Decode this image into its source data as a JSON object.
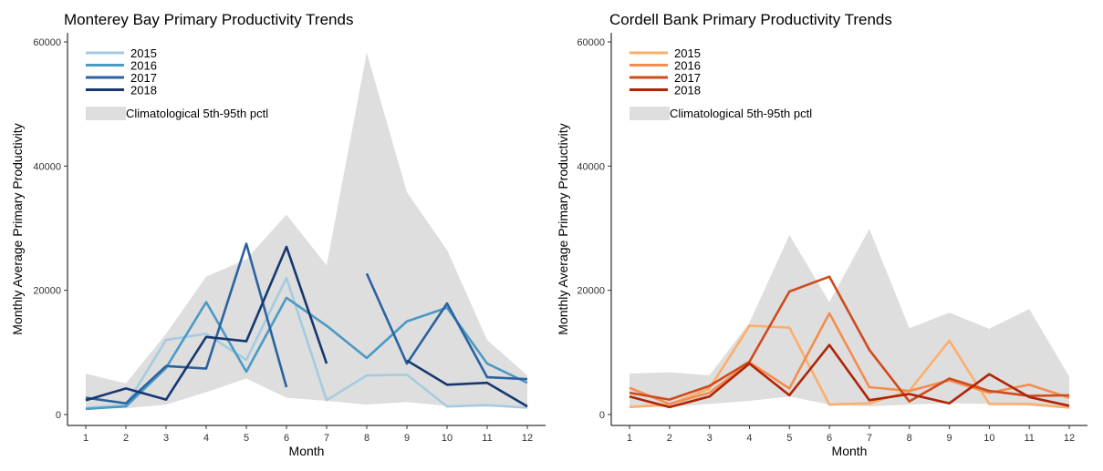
{
  "chart_data": [
    {
      "type": "line",
      "title": "Monterey Bay Primary Productivity Trends",
      "xlabel": "Month",
      "ylabel": "Monthly Average Primary Productivity",
      "xlim": [
        1,
        12
      ],
      "ylim": [
        0,
        60000
      ],
      "x": [
        1,
        2,
        3,
        4,
        5,
        6,
        7,
        8,
        9,
        10,
        11,
        12
      ],
      "xticks": [
        "1",
        "2",
        "3",
        "4",
        "5",
        "6",
        "7",
        "8",
        "9",
        "10",
        "11",
        "12"
      ],
      "yticks": [
        0,
        20000,
        40000,
        60000
      ],
      "ytick_labels": [
        "0",
        "20000",
        "40000",
        "60000"
      ],
      "grid": false,
      "legend_position": "top-left",
      "band": {
        "name": "Climatological 5th-95th pctl",
        "color": "#dedede",
        "low": [
          1000,
          1000,
          1600,
          3600,
          5800,
          2700,
          2200,
          1600,
          2000,
          1400,
          1400,
          1000
        ],
        "high": [
          6600,
          5000,
          13000,
          22200,
          25000,
          32200,
          24000,
          58300,
          35800,
          26500,
          12000,
          6300
        ]
      },
      "series": [
        {
          "name": "2015",
          "color": "#a6cbe0",
          "values": [
            1100,
            1500,
            12000,
            13000,
            8800,
            22000,
            2300,
            6300,
            6400,
            1300,
            1500,
            1100
          ]
        },
        {
          "name": "2016",
          "color": "#4a9ac4",
          "values": [
            900,
            1300,
            7500,
            18100,
            6900,
            18800,
            14300,
            9100,
            15000,
            17200,
            8200,
            5100
          ]
        },
        {
          "name": "2017",
          "color": "#2c62a0",
          "values": [
            2700,
            1800,
            7800,
            7400,
            27500,
            4400,
            null,
            22700,
            8200,
            17900,
            6000,
            5700
          ]
        },
        {
          "name": "2018",
          "color": "#163870",
          "values": [
            2300,
            4200,
            2400,
            12500,
            11800,
            27000,
            8200,
            null,
            8700,
            4800,
            5100,
            1300
          ]
        }
      ]
    },
    {
      "type": "line",
      "title": "Cordell Bank Primary Productivity Trends",
      "xlabel": "Month",
      "ylabel": "Monthly Average Primary Productivity",
      "xlim": [
        1,
        12
      ],
      "ylim": [
        0,
        60000
      ],
      "x": [
        1,
        2,
        3,
        4,
        5,
        6,
        7,
        8,
        9,
        10,
        11,
        12
      ],
      "xticks": [
        "1",
        "2",
        "3",
        "4",
        "5",
        "6",
        "7",
        "8",
        "9",
        "10",
        "11",
        "12"
      ],
      "yticks": [
        0,
        20000,
        40000,
        60000
      ],
      "ytick_labels": [
        "0",
        "20000",
        "40000",
        "60000"
      ],
      "grid": false,
      "legend_position": "top-left",
      "band": {
        "name": "Climatological 5th-95th pctl",
        "color": "#dedede",
        "low": [
          1200,
          1200,
          1700,
          2200,
          2900,
          1600,
          1300,
          1600,
          1800,
          1700,
          1400,
          1000
        ],
        "high": [
          6600,
          6800,
          6300,
          14800,
          28900,
          18100,
          29900,
          13900,
          16400,
          13800,
          17000,
          6100
        ]
      },
      "series": [
        {
          "name": "2015",
          "color": "#fdae6b",
          "values": [
            1200,
            1600,
            4200,
            14300,
            14000,
            1600,
            1800,
            3800,
            11900,
            1700,
            1700,
            1100
          ]
        },
        {
          "name": "2016",
          "color": "#f38d4f",
          "values": [
            4300,
            1700,
            3500,
            8400,
            4200,
            16300,
            4400,
            3800,
            5500,
            3500,
            4800,
            2700
          ]
        },
        {
          "name": "2017",
          "color": "#cf4b1c",
          "values": [
            3500,
            2400,
            4600,
            8500,
            19800,
            22200,
            10400,
            2100,
            5800,
            3800,
            3000,
            3100
          ]
        },
        {
          "name": "2018",
          "color": "#b02407",
          "values": [
            2900,
            1200,
            2900,
            8200,
            3100,
            11200,
            2300,
            3300,
            1800,
            6500,
            2800,
            1400
          ]
        }
      ]
    }
  ]
}
